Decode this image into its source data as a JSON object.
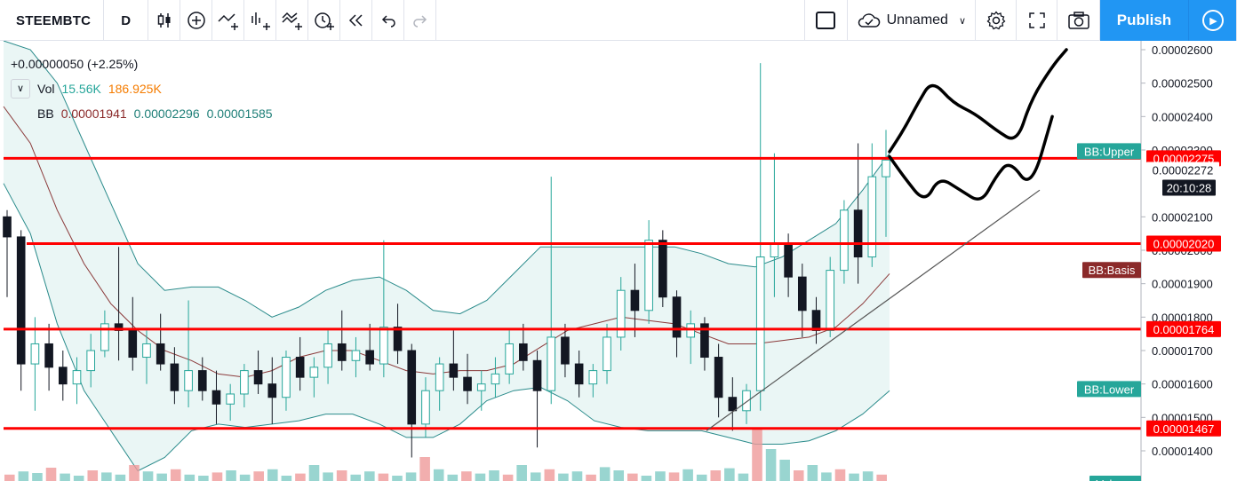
{
  "toolbar": {
    "symbol": "STEEMBTC",
    "interval": "D",
    "layout_name": "Unnamed",
    "publish_label": "Publish",
    "icons": [
      "candles-icon",
      "add-indicator-icon",
      "compare-icon",
      "bar-style-icon",
      "indicators-icon",
      "alert-icon",
      "replay-icon",
      "undo-icon",
      "redo-icon",
      "fullscreen-square-icon",
      "cloud-icon",
      "settings-icon",
      "expand-icon",
      "camera-icon",
      "play-icon"
    ]
  },
  "legend": {
    "change": "+0.00000050 (+2.25%)",
    "vol_label": "Vol",
    "vol_value1": "15.56K",
    "vol_value2": "186.925K",
    "bb_label": "BB",
    "bb_basis": "0.00001941",
    "bb_upper": "0.00002296",
    "bb_lower": "0.00001585"
  },
  "colors": {
    "up": "#26a69a",
    "down": "#131722",
    "bb_band": "#2a8b8b",
    "bb_basis": "#8b3a3a",
    "bb_fill": "#e6f4f3",
    "hline": "#ff0000",
    "badge_upper": "#26a69a",
    "badge_basis": "#8b2a2a",
    "accent": "#2196f3"
  },
  "chart_data": {
    "type": "candlestick",
    "title": "STEEMBTC",
    "interval": "D",
    "y_axis_ticks": [
      "0.00002600",
      "0.00002500",
      "0.00002400",
      "0.00002300",
      "0.00002100",
      "0.00002000",
      "0.00001900",
      "0.00001800",
      "0.00001700",
      "0.00001600",
      "0.00001500",
      "0.00001400"
    ],
    "y_axis_tick_values": [
      2.6e-05,
      2.5e-05,
      2.4e-05,
      2.3e-05,
      2.1e-05,
      2e-05,
      1.9e-05,
      1.8e-05,
      1.7e-05,
      1.6e-05,
      1.5e-05,
      1.4e-05
    ],
    "ylim": [
      1.34e-05,
      2.66e-05
    ],
    "horizontal_levels": [
      {
        "label": "0.00002275",
        "value": 2.275e-05
      },
      {
        "label": "0.00002020",
        "value": 2.02e-05
      },
      {
        "label": "0.00001764",
        "value": 1.764e-05
      },
      {
        "label": "0.00001467",
        "value": 1.467e-05
      }
    ],
    "current_price_label": "0.00002272",
    "current_price": 2.272e-05,
    "countdown_label": "20:10:28",
    "band_labels": {
      "upper": "BB:Upper",
      "basis": "BB:Basis",
      "lower": "BB:Lower",
      "volume": "Volume"
    },
    "bb_last": {
      "upper": 2.296e-05,
      "basis": 1.941e-05,
      "lower": 1.585e-05
    },
    "volume_last": [
      "15.56K",
      "186.925K"
    ],
    "trendline": {
      "from": 1.46e-05,
      "to": 2.18e-05
    },
    "bb_basis_path": [
      2.43e-05,
      2.32e-05,
      2.12e-05,
      1.96e-05,
      1.84e-05,
      1.76e-05,
      1.7e-05,
      1.67e-05,
      1.63e-05,
      1.62e-05,
      1.64e-05,
      1.68e-05,
      1.7e-05,
      1.7e-05,
      1.67e-05,
      1.64e-05,
      1.63e-05,
      1.64e-05,
      1.64e-05,
      1.66e-05,
      1.71e-05,
      1.76e-05,
      1.78e-05,
      1.8e-05,
      1.79e-05,
      1.78e-05,
      1.75e-05,
      1.72e-05,
      1.72e-05,
      1.73e-05,
      1.74e-05,
      1.77e-05,
      1.84e-05,
      1.93e-05
    ],
    "bb_upper_path": [
      2.66e-05,
      2.6e-05,
      2.5e-05,
      2.32e-05,
      2.14e-05,
      1.96e-05,
      1.88e-05,
      1.89e-05,
      1.89e-05,
      1.85e-05,
      1.8e-05,
      1.83e-05,
      1.88e-05,
      1.91e-05,
      1.92e-05,
      1.88e-05,
      1.82e-05,
      1.81e-05,
      1.85e-05,
      1.93e-05,
      2.01e-05,
      2.01e-05,
      2.01e-05,
      2.01e-05,
      2.01e-05,
      2.01e-05,
      1.99e-05,
      1.96e-05,
      1.95e-05,
      1.98e-05,
      2.03e-05,
      2.08e-05,
      2.18e-05,
      2.29e-05
    ],
    "bb_lower_path": [
      2.2e-05,
      2.05e-05,
      1.78e-05,
      1.58e-05,
      1.46e-05,
      1.34e-05,
      1.38e-05,
      1.46e-05,
      1.48e-05,
      1.47e-05,
      1.48e-05,
      1.49e-05,
      1.51e-05,
      1.51e-05,
      1.48e-05,
      1.44e-05,
      1.44e-05,
      1.48e-05,
      1.55e-05,
      1.58e-05,
      1.59e-05,
      1.55e-05,
      1.49e-05,
      1.47e-05,
      1.46e-05,
      1.46e-05,
      1.46e-05,
      1.44e-05,
      1.42e-05,
      1.42e-05,
      1.43e-05,
      1.46e-05,
      1.51e-05,
      1.58e-05
    ],
    "volume_bars": [
      0.12,
      0.18,
      0.15,
      0.25,
      0.14,
      0.1,
      0.2,
      0.16,
      0.12,
      0.3,
      0.18,
      0.14,
      0.22,
      0.12,
      0.1,
      0.16,
      0.2,
      0.12,
      0.18,
      0.22,
      0.1,
      0.14,
      0.3,
      0.16,
      0.2,
      0.12,
      0.18,
      0.14,
      0.1,
      0.16,
      0.45,
      0.22,
      0.12,
      0.18,
      0.14,
      0.2,
      0.12,
      0.3,
      0.16,
      0.22,
      0.14,
      0.18,
      0.12,
      0.26,
      0.2,
      0.14,
      0.1,
      0.18,
      0.16,
      0.22,
      0.12,
      0.2,
      0.24,
      0.14,
      1.0,
      0.6,
      0.4,
      0.2,
      0.3,
      0.16,
      0.22,
      0.14,
      0.18,
      0.12
    ],
    "scribble_paths": [
      [
        [
          1.0,
          2.295e-05
        ],
        [
          1.02,
          2.36e-05
        ],
        [
          1.04,
          2.44e-05
        ],
        [
          1.06,
          2.51e-05
        ],
        [
          1.09,
          2.44e-05
        ],
        [
          1.12,
          2.41e-05
        ],
        [
          1.15,
          2.36e-05
        ],
        [
          1.18,
          2.32e-05
        ],
        [
          1.2,
          2.45e-05
        ],
        [
          1.23,
          2.55e-05
        ],
        [
          1.25,
          2.6e-05
        ]
      ],
      [
        [
          1.0,
          2.28e-05
        ],
        [
          1.02,
          2.22e-05
        ],
        [
          1.05,
          2.14e-05
        ],
        [
          1.07,
          2.22e-05
        ],
        [
          1.1,
          2.18e-05
        ],
        [
          1.13,
          2.14e-05
        ],
        [
          1.15,
          2.22e-05
        ],
        [
          1.17,
          2.27e-05
        ],
        [
          1.2,
          2.18e-05
        ],
        [
          1.23,
          2.4e-05
        ]
      ]
    ],
    "candles": [
      {
        "o": 2.1e-05,
        "h": 2.12e-05,
        "l": 1.86e-05,
        "c": 2.04e-05
      },
      {
        "o": 2.04e-05,
        "h": 2.06e-05,
        "l": 1.58e-05,
        "c": 1.66e-05
      },
      {
        "o": 1.66e-05,
        "h": 1.8e-05,
        "l": 1.52e-05,
        "c": 1.72e-05
      },
      {
        "o": 1.72e-05,
        "h": 1.78e-05,
        "l": 1.58e-05,
        "c": 1.65e-05
      },
      {
        "o": 1.65e-05,
        "h": 1.7e-05,
        "l": 1.55e-05,
        "c": 1.6e-05
      },
      {
        "o": 1.6e-05,
        "h": 1.68e-05,
        "l": 1.54e-05,
        "c": 1.64e-05
      },
      {
        "o": 1.64e-05,
        "h": 1.75e-05,
        "l": 1.59e-05,
        "c": 1.7e-05
      },
      {
        "o": 1.7e-05,
        "h": 1.82e-05,
        "l": 1.68e-05,
        "c": 1.78e-05
      },
      {
        "o": 1.78e-05,
        "h": 2.01e-05,
        "l": 1.67e-05,
        "c": 1.76e-05
      },
      {
        "o": 1.76e-05,
        "h": 1.86e-05,
        "l": 1.64e-05,
        "c": 1.68e-05
      },
      {
        "o": 1.68e-05,
        "h": 1.76e-05,
        "l": 1.6e-05,
        "c": 1.72e-05
      },
      {
        "o": 1.72e-05,
        "h": 1.81e-05,
        "l": 1.64e-05,
        "c": 1.66e-05
      },
      {
        "o": 1.66e-05,
        "h": 1.71e-05,
        "l": 1.54e-05,
        "c": 1.58e-05
      },
      {
        "o": 1.58e-05,
        "h": 1.85e-05,
        "l": 1.53e-05,
        "c": 1.64e-05
      },
      {
        "o": 1.64e-05,
        "h": 1.68e-05,
        "l": 1.55e-05,
        "c": 1.58e-05
      },
      {
        "o": 1.58e-05,
        "h": 1.64e-05,
        "l": 1.48e-05,
        "c": 1.54e-05
      },
      {
        "o": 1.54e-05,
        "h": 1.6e-05,
        "l": 1.49e-05,
        "c": 1.57e-05
      },
      {
        "o": 1.57e-05,
        "h": 1.66e-05,
        "l": 1.53e-05,
        "c": 1.64e-05
      },
      {
        "o": 1.64e-05,
        "h": 1.7e-05,
        "l": 1.57e-05,
        "c": 1.6e-05
      },
      {
        "o": 1.6e-05,
        "h": 1.68e-05,
        "l": 1.48e-05,
        "c": 1.56e-05
      },
      {
        "o": 1.56e-05,
        "h": 1.7e-05,
        "l": 1.52e-05,
        "c": 1.68e-05
      },
      {
        "o": 1.68e-05,
        "h": 1.74e-05,
        "l": 1.58e-05,
        "c": 1.62e-05
      },
      {
        "o": 1.62e-05,
        "h": 1.68e-05,
        "l": 1.56e-05,
        "c": 1.65e-05
      },
      {
        "o": 1.65e-05,
        "h": 1.76e-05,
        "l": 1.6e-05,
        "c": 1.72e-05
      },
      {
        "o": 1.72e-05,
        "h": 1.82e-05,
        "l": 1.64e-05,
        "c": 1.67e-05
      },
      {
        "o": 1.67e-05,
        "h": 1.74e-05,
        "l": 1.62e-05,
        "c": 1.7e-05
      },
      {
        "o": 1.7e-05,
        "h": 1.78e-05,
        "l": 1.64e-05,
        "c": 1.66e-05
      },
      {
        "o": 1.66e-05,
        "h": 2.03e-05,
        "l": 1.62e-05,
        "c": 1.77e-05
      },
      {
        "o": 1.77e-05,
        "h": 1.84e-05,
        "l": 1.66e-05,
        "c": 1.7e-05
      },
      {
        "o": 1.7e-05,
        "h": 1.72e-05,
        "l": 1.38e-05,
        "c": 1.48e-05
      },
      {
        "o": 1.48e-05,
        "h": 1.62e-05,
        "l": 1.44e-05,
        "c": 1.58e-05
      },
      {
        "o": 1.58e-05,
        "h": 1.68e-05,
        "l": 1.52e-05,
        "c": 1.66e-05
      },
      {
        "o": 1.66e-05,
        "h": 1.76e-05,
        "l": 1.58e-05,
        "c": 1.62e-05
      },
      {
        "o": 1.62e-05,
        "h": 1.69e-05,
        "l": 1.54e-05,
        "c": 1.58e-05
      },
      {
        "o": 1.58e-05,
        "h": 1.64e-05,
        "l": 1.52e-05,
        "c": 1.6e-05
      },
      {
        "o": 1.6e-05,
        "h": 1.68e-05,
        "l": 1.56e-05,
        "c": 1.63e-05
      },
      {
        "o": 1.63e-05,
        "h": 1.76e-05,
        "l": 1.6e-05,
        "c": 1.72e-05
      },
      {
        "o": 1.72e-05,
        "h": 1.78e-05,
        "l": 1.64e-05,
        "c": 1.67e-05
      },
      {
        "o": 1.67e-05,
        "h": 1.7e-05,
        "l": 1.41e-05,
        "c": 1.58e-05
      },
      {
        "o": 1.58e-05,
        "h": 2.22e-05,
        "l": 1.54e-05,
        "c": 1.74e-05
      },
      {
        "o": 1.74e-05,
        "h": 1.78e-05,
        "l": 1.62e-05,
        "c": 1.66e-05
      },
      {
        "o": 1.66e-05,
        "h": 1.7e-05,
        "l": 1.56e-05,
        "c": 1.6e-05
      },
      {
        "o": 1.6e-05,
        "h": 1.66e-05,
        "l": 1.56e-05,
        "c": 1.64e-05
      },
      {
        "o": 1.64e-05,
        "h": 1.78e-05,
        "l": 1.6e-05,
        "c": 1.74e-05
      },
      {
        "o": 1.74e-05,
        "h": 1.92e-05,
        "l": 1.7e-05,
        "c": 1.88e-05
      },
      {
        "o": 1.88e-05,
        "h": 1.96e-05,
        "l": 1.74e-05,
        "c": 1.82e-05
      },
      {
        "o": 1.82e-05,
        "h": 2.09e-05,
        "l": 1.78e-05,
        "c": 2.03e-05
      },
      {
        "o": 2.03e-05,
        "h": 2.06e-05,
        "l": 1.83e-05,
        "c": 1.86e-05
      },
      {
        "o": 1.86e-05,
        "h": 1.88e-05,
        "l": 1.68e-05,
        "c": 1.74e-05
      },
      {
        "o": 1.74e-05,
        "h": 1.82e-05,
        "l": 1.66e-05,
        "c": 1.78e-05
      },
      {
        "o": 1.78e-05,
        "h": 1.8e-05,
        "l": 1.64e-05,
        "c": 1.68e-05
      },
      {
        "o": 1.68e-05,
        "h": 1.72e-05,
        "l": 1.5e-05,
        "c": 1.56e-05
      },
      {
        "o": 1.56e-05,
        "h": 1.62e-05,
        "l": 1.46e-05,
        "c": 1.52e-05
      },
      {
        "o": 1.52e-05,
        "h": 1.6e-05,
        "l": 1.48e-05,
        "c": 1.58e-05
      },
      {
        "o": 1.58e-05,
        "h": 2.56e-05,
        "l": 1.52e-05,
        "c": 1.98e-05
      },
      {
        "o": 1.98e-05,
        "h": 2.29e-05,
        "l": 1.86e-05,
        "c": 2.02e-05
      },
      {
        "o": 2.02e-05,
        "h": 2.05e-05,
        "l": 1.86e-05,
        "c": 1.92e-05
      },
      {
        "o": 1.92e-05,
        "h": 1.96e-05,
        "l": 1.74e-05,
        "c": 1.82e-05
      },
      {
        "o": 1.82e-05,
        "h": 1.86e-05,
        "l": 1.72e-05,
        "c": 1.76e-05
      },
      {
        "o": 1.76e-05,
        "h": 1.98e-05,
        "l": 1.74e-05,
        "c": 1.94e-05
      },
      {
        "o": 1.94e-05,
        "h": 2.15e-05,
        "l": 1.9e-05,
        "c": 2.12e-05
      },
      {
        "o": 2.12e-05,
        "h": 2.32e-05,
        "l": 1.9e-05,
        "c": 1.98e-05
      },
      {
        "o": 1.98e-05,
        "h": 2.32e-05,
        "l": 1.95e-05,
        "c": 2.22e-05
      },
      {
        "o": 2.22e-05,
        "h": 2.36e-05,
        "l": 2.04e-05,
        "c": 2.27e-05
      }
    ]
  }
}
